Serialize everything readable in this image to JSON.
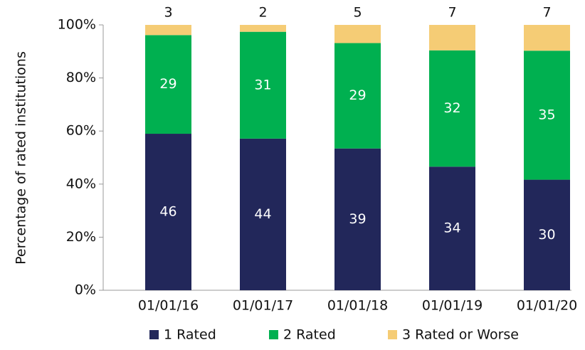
{
  "chart_data": {
    "type": "bar",
    "stacking": "percent",
    "y_label": "Percentage of rated institutions",
    "categories": [
      "01/01/16",
      "01/01/17",
      "01/01/18",
      "01/01/19",
      "01/01/20"
    ],
    "series": [
      {
        "name": "1 Rated",
        "color": "#22275a",
        "values": [
          46,
          44,
          39,
          34,
          30
        ]
      },
      {
        "name": "2 Rated",
        "color": "#00b050",
        "values": [
          29,
          31,
          29,
          32,
          35
        ]
      },
      {
        "name": "3 Rated or Worse",
        "color": "#f5cc75",
        "values": [
          3,
          2,
          5,
          7,
          7
        ]
      }
    ],
    "ylim": [
      0,
      100
    ],
    "yticks": [
      {
        "value": 0,
        "label": "0%"
      },
      {
        "value": 20,
        "label": "20%"
      },
      {
        "value": 40,
        "label": "40%"
      },
      {
        "value": 60,
        "label": "60%"
      },
      {
        "value": 80,
        "label": "80%"
      },
      {
        "value": 100,
        "label": "100%"
      }
    ],
    "legend": "bottom"
  }
}
